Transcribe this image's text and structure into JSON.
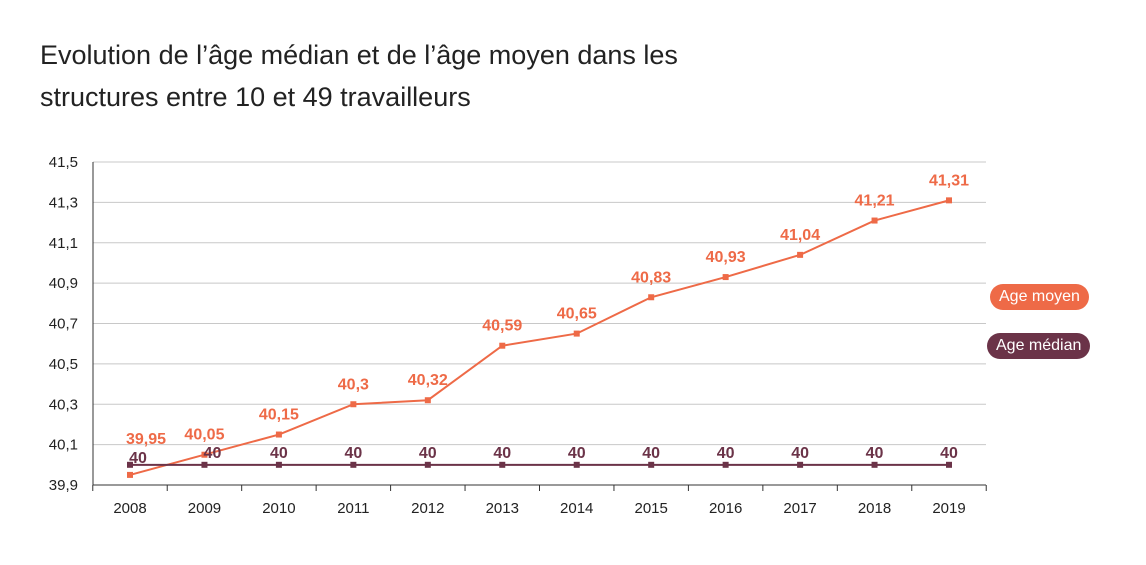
{
  "title": {
    "line1": "Evolution de l’âge médian et de l’âge moyen dans les",
    "line2": "structures entre 10 et 49 travailleurs"
  },
  "colors": {
    "moyen": "#ee6a47",
    "median": "#6b3348",
    "grid": "#c8c8c8",
    "axis": "#333333"
  },
  "legend": [
    {
      "label": "Age moyen",
      "color": "#ee6a47"
    },
    {
      "label": "Age médian",
      "color": "#6b3348"
    }
  ],
  "chart_data": {
    "type": "line",
    "x": [
      "2008",
      "2009",
      "2010",
      "2011",
      "2012",
      "2013",
      "2014",
      "2015",
      "2016",
      "2017",
      "2018",
      "2019"
    ],
    "ylim": [
      39.9,
      41.5
    ],
    "yticks": [
      "41,5",
      "41,3",
      "41,1",
      "40,9",
      "40,7",
      "40,5",
      "40,3",
      "40,1",
      "39,9"
    ],
    "grid": true,
    "legend_position": "right",
    "series": [
      {
        "name": "Age moyen",
        "values": [
          39.95,
          40.05,
          40.15,
          40.3,
          40.32,
          40.59,
          40.65,
          40.83,
          40.93,
          41.04,
          41.21,
          41.31
        ],
        "labels": [
          "39,95",
          "40,05",
          "40,15",
          "40,3",
          "40,32",
          "40,59",
          "40,65",
          "40,83",
          "40,93",
          "41,04",
          "41,21",
          "41,31"
        ]
      },
      {
        "name": "Age médian",
        "values": [
          40,
          40,
          40,
          40,
          40,
          40,
          40,
          40,
          40,
          40,
          40,
          40
        ],
        "labels": [
          "40",
          "40",
          "40",
          "40",
          "40",
          "40",
          "40",
          "40",
          "40",
          "40",
          "40",
          "40"
        ]
      }
    ]
  }
}
